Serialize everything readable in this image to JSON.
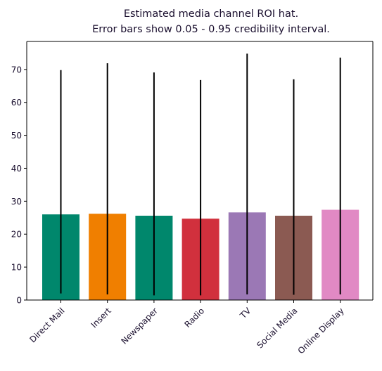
{
  "chart_data": {
    "type": "bar",
    "title_lines": [
      "Estimated media channel ROI hat.",
      "Error bars show 0.05 - 0.95 credibility interval."
    ],
    "xlabel": "",
    "ylabel": "",
    "categories": [
      "Direct Mail",
      "Insert",
      "Newspaper",
      "Radio",
      "TV",
      "Social Media",
      "Online Display"
    ],
    "values": [
      26.0,
      26.2,
      25.6,
      24.7,
      26.6,
      25.6,
      27.4
    ],
    "err_low": [
      2.0,
      1.7,
      1.4,
      1.4,
      1.7,
      1.6,
      1.7
    ],
    "err_high": [
      69.8,
      71.9,
      69.1,
      66.8,
      74.8,
      67.0,
      73.6
    ],
    "colors": [
      "#00876c",
      "#f07f00",
      "#00876c",
      "#d1303d",
      "#9b78b5",
      "#8b5a52",
      "#e189c4"
    ],
    "ylim": [
      0,
      78.5
    ],
    "yticks": [
      0,
      10,
      20,
      30,
      40,
      50,
      60,
      70
    ],
    "grid": false,
    "legend": "none"
  }
}
